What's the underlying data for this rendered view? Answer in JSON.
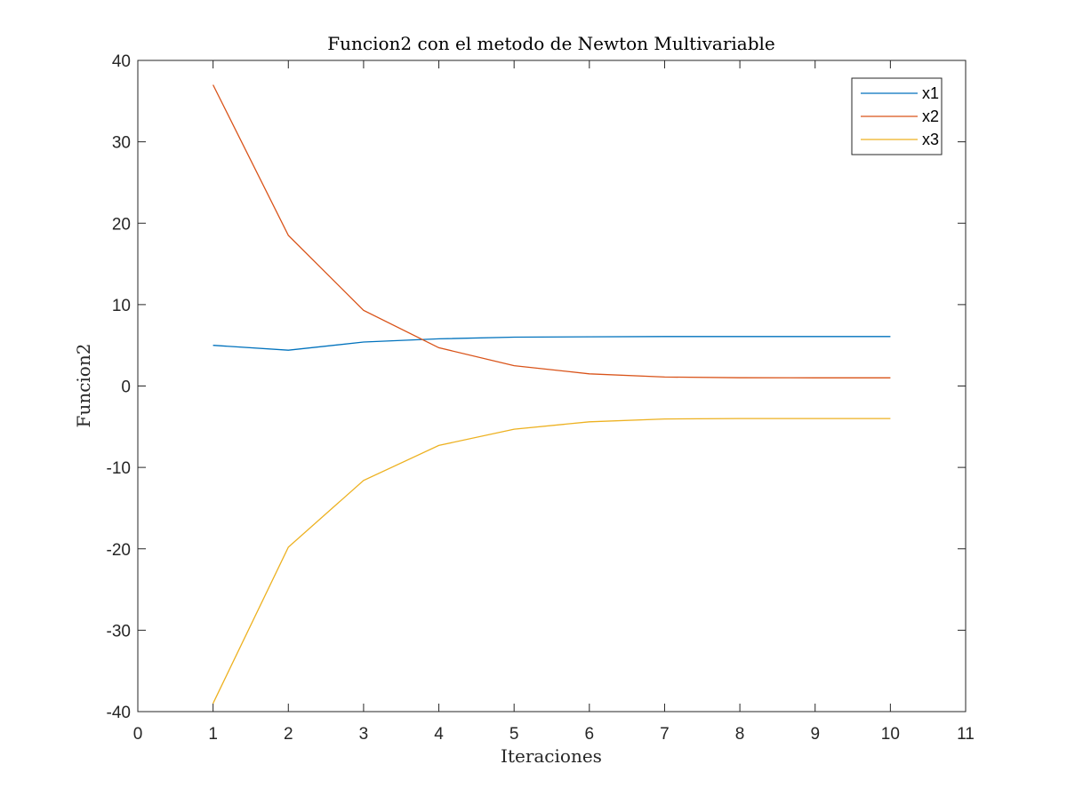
{
  "chart_data": {
    "type": "line",
    "title": "Funcion2 con el metodo de Newton Multivariable",
    "xlabel": "Iteraciones",
    "ylabel": "Funcion2",
    "xlim": [
      0,
      11
    ],
    "ylim": [
      -40,
      40
    ],
    "xticks": [
      "0",
      "1",
      "2",
      "3",
      "4",
      "5",
      "6",
      "7",
      "8",
      "9",
      "10",
      "11"
    ],
    "yticks": [
      "-40",
      "-30",
      "-20",
      "-10",
      "0",
      "10",
      "20",
      "30",
      "40"
    ],
    "x": [
      1,
      2,
      3,
      4,
      5,
      6,
      7,
      8,
      9,
      10
    ],
    "series": [
      {
        "name": "x1",
        "color": "#0072BD",
        "values": [
          5.0,
          4.4,
          5.4,
          5.8,
          6.0,
          6.05,
          6.08,
          6.08,
          6.08,
          6.08
        ]
      },
      {
        "name": "x2",
        "color": "#D95319",
        "values": [
          37.0,
          18.5,
          9.3,
          4.7,
          2.5,
          1.5,
          1.1,
          1.02,
          1.0,
          1.0
        ]
      },
      {
        "name": "x3",
        "color": "#EDB120",
        "values": [
          -39.0,
          -19.8,
          -11.6,
          -7.3,
          -5.3,
          -4.4,
          -4.05,
          -4.0,
          -4.0,
          -4.0
        ]
      }
    ],
    "grid": false,
    "legend": "top-right"
  }
}
